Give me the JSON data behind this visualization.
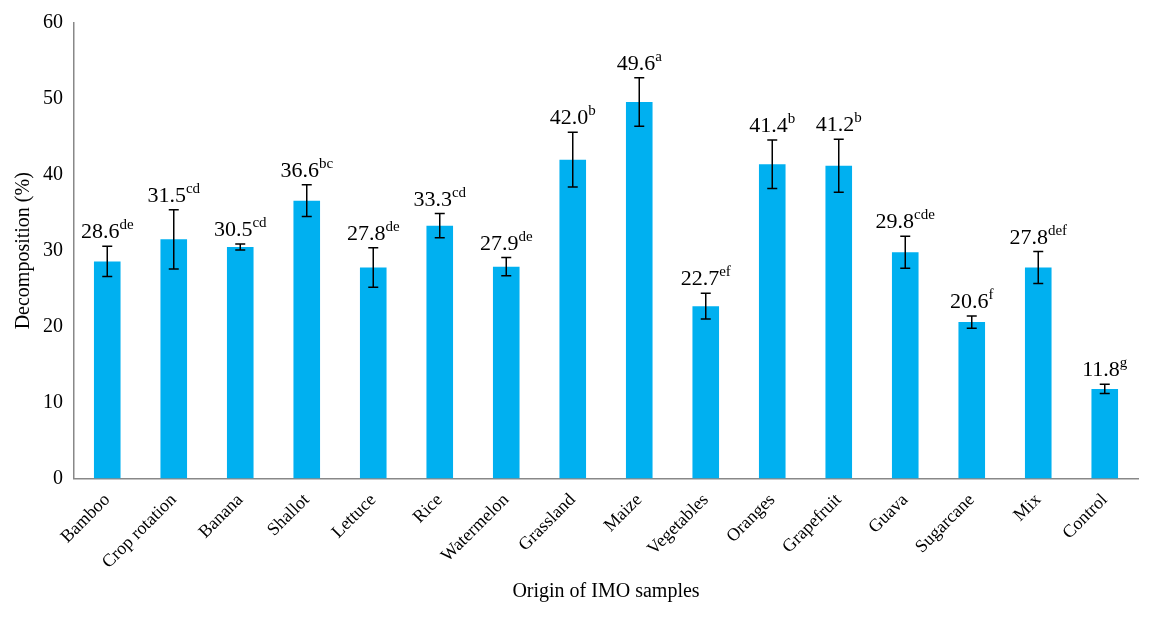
{
  "chart_data": {
    "type": "bar",
    "xlabel": "Origin of IMO samples",
    "ylabel": "Decomposition (%)",
    "categories": [
      "Bamboo",
      "Crop rotation",
      "Banana",
      "Shallot",
      "Lettuce",
      "Rice",
      "Watermelon",
      "Grassland",
      "Maize",
      "Vegetables",
      "Oranges",
      "Grapefruit",
      "Guava",
      "Sugarcane",
      "Mix",
      "Control"
    ],
    "values": [
      28.6,
      31.5,
      30.5,
      36.6,
      27.8,
      33.3,
      27.9,
      42.0,
      49.6,
      22.7,
      41.4,
      41.2,
      29.8,
      20.6,
      27.8,
      11.8
    ],
    "errors": [
      2.0,
      3.9,
      0.4,
      2.1,
      2.6,
      1.6,
      1.2,
      3.6,
      3.2,
      1.7,
      3.2,
      3.5,
      2.1,
      0.8,
      2.1,
      0.6
    ],
    "value_labels": [
      "28.6$^{de}$",
      "31.5$^{cd}$",
      "30.5$^{cd}$",
      "36.6$^{bc}$",
      "27.8$^{de}$",
      "33.3$^{cd}$",
      "27.9$^{de}$",
      "42.0$^{b}$",
      "49.6$^{a}$",
      "22.7$^{ef}$",
      "41.4$^{b}$",
      "41.2$^{b}$",
      "29.8$^{cde}$",
      "20.6$^{f}$",
      "27.8$^{def}$",
      "11.8$^{g}$"
    ],
    "color": "#00b0f0",
    "ylim": [
      0,
      60
    ],
    "yticks": [
      0,
      10,
      20,
      30,
      40,
      50,
      60
    ],
    "grid": false,
    "legend": false
  }
}
